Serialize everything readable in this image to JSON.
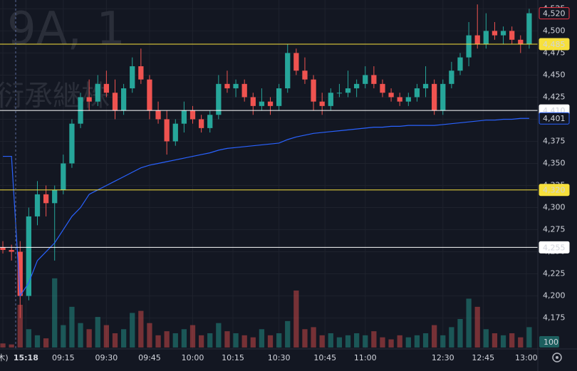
{
  "chart_data": {
    "type": "candlestick",
    "watermark_symbol": "9A, 1",
    "watermark_name": "衍承継株",
    "x": [
      -6,
      -3,
      0,
      3,
      6,
      9,
      12,
      15,
      18,
      21,
      24,
      27,
      30,
      33,
      36,
      39,
      42,
      45,
      48,
      51,
      54,
      57,
      60,
      63,
      66,
      69,
      72,
      75,
      78,
      81,
      84,
      87,
      90,
      93,
      96,
      99,
      102,
      105,
      108,
      111,
      114,
      117,
      120,
      123,
      126,
      129,
      132,
      135,
      138,
      141,
      144,
      147,
      150,
      153,
      156,
      159,
      162,
      165,
      168,
      171,
      174,
      177
    ],
    "open": [
      4255,
      4252,
      4250,
      4200,
      4290,
      4315,
      4305,
      4320,
      4350,
      4395,
      4425,
      4420,
      4440,
      4430,
      4410,
      4435,
      4460,
      4445,
      4410,
      4400,
      4375,
      4395,
      4410,
      4400,
      4390,
      4405,
      4440,
      4435,
      4440,
      4425,
      4415,
      4420,
      4415,
      4435,
      4475,
      4455,
      4445,
      4420,
      4415,
      4430,
      4430,
      4435,
      4440,
      4450,
      4440,
      4430,
      4425,
      4420,
      4425,
      4435,
      4440,
      4410,
      4440,
      4455,
      4470,
      4495,
      4485,
      4500,
      4495,
      4500,
      4490,
      4485
    ],
    "high": [
      4262,
      4258,
      4262,
      4300,
      4330,
      4325,
      4325,
      4360,
      4400,
      4430,
      4445,
      4450,
      4455,
      4445,
      4440,
      4470,
      4480,
      4450,
      4420,
      4410,
      4400,
      4420,
      4415,
      4405,
      4410,
      4450,
      4455,
      4445,
      4445,
      4430,
      4435,
      4425,
      4440,
      4485,
      4480,
      4470,
      4450,
      4430,
      4435,
      4440,
      4455,
      4445,
      4460,
      4460,
      4445,
      4435,
      4430,
      4430,
      4440,
      4460,
      4445,
      4445,
      4465,
      4475,
      4510,
      4530,
      4520,
      4510,
      4505,
      4505,
      4495,
      4525
    ],
    "low": [
      4248,
      4240,
      4175,
      4195,
      4280,
      4290,
      4240,
      4315,
      4345,
      4390,
      4410,
      4415,
      4425,
      4400,
      4405,
      4430,
      4440,
      4400,
      4395,
      4360,
      4370,
      4385,
      4395,
      4385,
      4385,
      4400,
      4430,
      4425,
      4420,
      4405,
      4410,
      4405,
      4410,
      4430,
      4450,
      4440,
      4410,
      4405,
      4410,
      4425,
      4425,
      4425,
      4435,
      4435,
      4425,
      4420,
      4415,
      4415,
      4420,
      4425,
      4405,
      4405,
      4435,
      4450,
      4460,
      4480,
      4480,
      4490,
      4485,
      4485,
      4475,
      4480
    ],
    "close": [
      4252,
      4250,
      4200,
      4290,
      4315,
      4305,
      4320,
      4350,
      4395,
      4425,
      4420,
      4440,
      4430,
      4410,
      4435,
      4460,
      4445,
      4410,
      4400,
      4375,
      4395,
      4410,
      4400,
      4390,
      4405,
      4440,
      4435,
      4440,
      4425,
      4415,
      4420,
      4415,
      4435,
      4475,
      4455,
      4445,
      4420,
      4415,
      4430,
      4430,
      4435,
      4440,
      4450,
      4440,
      4430,
      4425,
      4420,
      4425,
      4435,
      4440,
      4410,
      4440,
      4455,
      4470,
      4495,
      4485,
      4500,
      4495,
      4500,
      4490,
      4485,
      4520
    ],
    "up_color": "#26a69a",
    "down_color": "#ef5350",
    "line": {
      "color": "#2962ff",
      "last_label": "4,401",
      "values": [
        4358,
        4358,
        4200,
        4215,
        4240,
        4250,
        4260,
        4275,
        4290,
        4300,
        4315,
        4320,
        4325,
        4330,
        4335,
        4340,
        4345,
        4348,
        4350,
        4352,
        4354,
        4356,
        4358,
        4360,
        4362,
        4365,
        4367,
        4368,
        4369,
        4370,
        4371,
        4372,
        4373,
        4377,
        4380,
        4382,
        4384,
        4385,
        4386,
        4387,
        4388,
        4389,
        4390,
        4391,
        4391,
        4392,
        4392,
        4393,
        4393,
        4393,
        4393,
        4394,
        4395,
        4396,
        4397,
        4398,
        4399,
        4399,
        4400,
        4400,
        4401,
        4401
      ]
    },
    "volume": {
      "ylim": [
        0,
        350
      ],
      "values": [
        20,
        15,
        210,
        90,
        60,
        45,
        340,
        110,
        200,
        120,
        90,
        150,
        110,
        70,
        90,
        170,
        180,
        120,
        60,
        80,
        70,
        90,
        110,
        60,
        70,
        120,
        80,
        70,
        60,
        50,
        90,
        60,
        70,
        130,
        280,
        90,
        100,
        60,
        70,
        50,
        60,
        70,
        60,
        80,
        50,
        40,
        60,
        50,
        60,
        70,
        110,
        60,
        100,
        140,
        240,
        200,
        90,
        70,
        60,
        70,
        50,
        100
      ]
    },
    "last_price": {
      "value": 4520,
      "label": "4,520",
      "color": "#f23645"
    },
    "price_lines": [
      {
        "value": 4485,
        "label": "4,485",
        "color": "#f7e03c"
      },
      {
        "value": 4410,
        "label": "4,410",
        "color": "#ffffff"
      },
      {
        "value": 4320,
        "label": "4,320",
        "color": "#f7e03c"
      },
      {
        "value": 4255,
        "label": "4,255",
        "color": "#ffffff"
      }
    ],
    "xlim": [
      -7,
      180
    ],
    "xticks": [
      {
        "value": -6,
        "label": "木)"
      },
      {
        "value": 2,
        "label": "15:18"
      },
      {
        "value": 15,
        "label": "09:15"
      },
      {
        "value": 30,
        "label": "09:30"
      },
      {
        "value": 45,
        "label": "09:45"
      },
      {
        "value": 60,
        "label": "10:00"
      },
      {
        "value": 74,
        "label": "10:15"
      },
      {
        "value": 90,
        "label": "10:30"
      },
      {
        "value": 106,
        "label": "10:45"
      },
      {
        "value": 120,
        "label": "11:00"
      },
      {
        "value": 147,
        "label": "12:30"
      },
      {
        "value": 161,
        "label": "12:45"
      },
      {
        "value": 176,
        "label": "13:00"
      }
    ],
    "ylim": [
      4140,
      4535
    ],
    "yticks": [
      {
        "value": 4525,
        "label": "4,525"
      },
      {
        "value": 4500,
        "label": "4,500"
      },
      {
        "value": 4475,
        "label": "4,475"
      },
      {
        "value": 4450,
        "label": "4,450"
      },
      {
        "value": 4425,
        "label": "4,425"
      },
      {
        "value": 4400,
        "label": "4,400"
      },
      {
        "value": 4375,
        "label": "4,375"
      },
      {
        "value": 4350,
        "label": "4,350"
      },
      {
        "value": 4325,
        "label": "4,325"
      },
      {
        "value": 4300,
        "label": "4,300"
      },
      {
        "value": 4275,
        "label": "4,275"
      },
      {
        "value": 4250,
        "label": "4,250"
      },
      {
        "value": 4225,
        "label": "4,225"
      },
      {
        "value": 4200,
        "label": "4,200"
      },
      {
        "value": 4175,
        "label": "4,175"
      }
    ],
    "grid": true
  }
}
